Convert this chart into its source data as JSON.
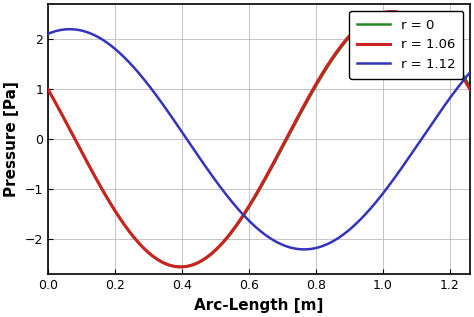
{
  "title": "",
  "xlabel": "Arc-Length [m]",
  "ylabel": "Pressure [Pa]",
  "xlim": [
    0,
    1.26
  ],
  "ylim": [
    -2.7,
    2.7
  ],
  "xticks": [
    0,
    0.2,
    0.4,
    0.6,
    0.8,
    1.0,
    1.2
  ],
  "yticks": [
    -2,
    -1,
    0,
    1,
    2
  ],
  "grid": true,
  "lines": [
    {
      "label": "r = 1.12",
      "color": "#3333bb",
      "amplitude": 2.2,
      "period": 1.4,
      "phase_shift": 0.065
    },
    {
      "label": "r = 1.06",
      "color": "#cc2222",
      "amplitude": 2.55,
      "period": 1.26,
      "phase_shift": 0.0
    },
    {
      "label": "r = 0",
      "color": "#228822",
      "amplitude": 2.55,
      "period": 1.265,
      "phase_shift": 0.0
    }
  ],
  "legend_loc": "upper right",
  "background_color": "#ffffff",
  "grid_color": "#bbbbbb",
  "label_fontsize": 11,
  "tick_fontsize": 9,
  "linewidth_blue": 1.8,
  "linewidth_red": 2.2,
  "linewidth_green": 1.8
}
